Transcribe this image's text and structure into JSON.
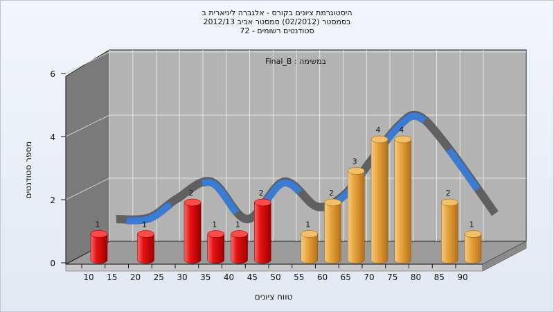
{
  "title_lines": [
    "היסטוגרמת ציונים בקורס - אלגברה ליניארית ב",
    "בסמסטר (02/2012) סמסטר אביב 2012/13",
    "סטודנטים רשומים - 72"
  ],
  "chart_data": {
    "type": "bar",
    "subtitle": "במשימה : Final_B",
    "xlabel": "טווח ציונים",
    "ylabel": "מספר סטודנטים",
    "ylim": [
      0,
      6
    ],
    "yticks": [
      "0",
      "2",
      "4",
      "6"
    ],
    "xticks": [
      "10",
      "15",
      "20",
      "25",
      "30",
      "35",
      "40",
      "45",
      "50",
      "55",
      "60",
      "65",
      "70",
      "75",
      "80",
      "85",
      "90"
    ],
    "x": [
      10,
      20,
      30,
      35,
      40,
      45,
      55,
      60,
      65,
      70,
      75,
      85,
      90
    ],
    "values": [
      1,
      1,
      2,
      1,
      1,
      2,
      1,
      2,
      3,
      4,
      4,
      2,
      1
    ],
    "data_labels": [
      "1",
      "1",
      "2",
      "1",
      "1",
      "2",
      "1",
      "2",
      "3",
      "4",
      "4",
      "2",
      "1"
    ],
    "colors": {
      "fail": "#e01010",
      "pass": "#e8a23a",
      "curve": "#3a7bd5",
      "curve_back": "#606060"
    },
    "pass_threshold": 55,
    "grid": true,
    "legend": "none"
  }
}
